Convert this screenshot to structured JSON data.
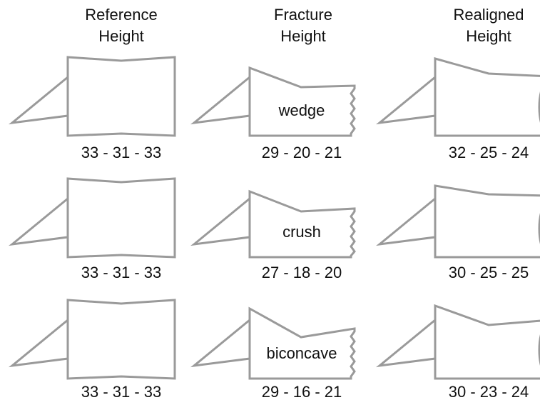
{
  "columns": [
    {
      "lines": [
        "Reference",
        "Height"
      ]
    },
    {
      "lines": [
        "Fracture",
        "Height"
      ]
    },
    {
      "lines": [
        "Realigned",
        "Height"
      ]
    }
  ],
  "rows": [
    {
      "reference": "33 - 31 - 33",
      "fracture": "29 - 20 - 21",
      "fracture_type": "wedge",
      "realigned": "32 - 25 - 24"
    },
    {
      "reference": "33 - 31 - 33",
      "fracture": "27 - 18 - 20",
      "fracture_type": "crush",
      "realigned": "30 - 25 - 25"
    },
    {
      "reference": "33 - 31 - 33",
      "fracture": "29 - 16 - 21",
      "fracture_type": "biconcave",
      "realigned": "30 - 23 - 24"
    }
  ]
}
